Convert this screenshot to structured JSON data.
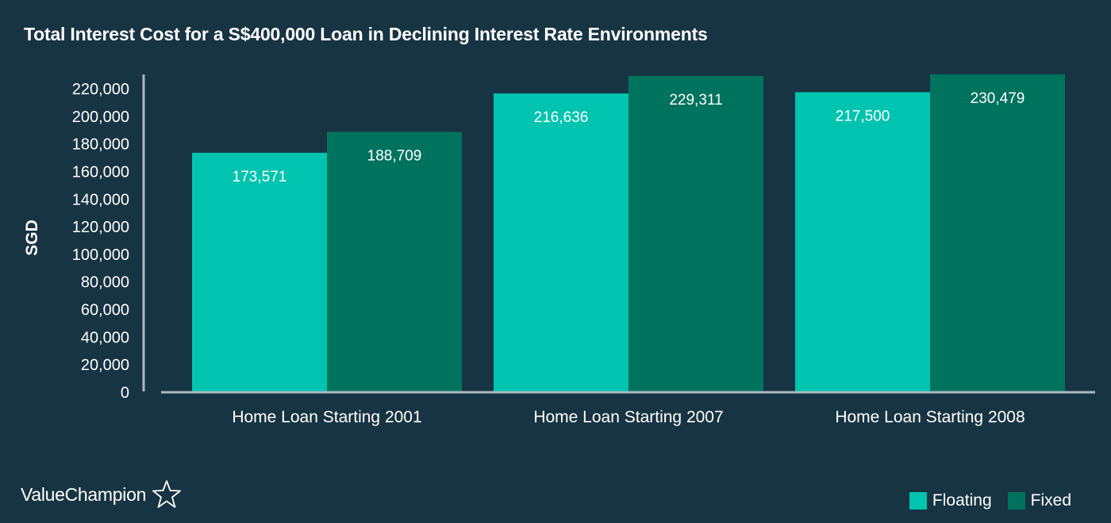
{
  "chart_data": {
    "type": "bar",
    "title": "Total Interest Cost for a S$400,000 Loan in Declining Interest Rate Environments",
    "xlabel": "",
    "ylabel": "SGD",
    "categories": [
      "Home Loan Starting 2001",
      "Home Loan Starting 2007",
      "Home Loan Starting 2008"
    ],
    "series": [
      {
        "name": "Floating",
        "color": "#00c4b0",
        "values": [
          173571,
          216636,
          217500
        ],
        "labels": [
          "173,571",
          "216,636",
          "217,500"
        ]
      },
      {
        "name": "Fixed",
        "color": "#00735f",
        "values": [
          188709,
          229311,
          230479
        ],
        "labels": [
          "188,709",
          "229,311",
          "230,479"
        ]
      }
    ],
    "ylim": [
      0,
      220000
    ],
    "yticks": [
      0,
      20000,
      40000,
      60000,
      80000,
      100000,
      120000,
      140000,
      160000,
      180000,
      200000,
      220000
    ],
    "ytick_labels": [
      "0",
      "20,000",
      "40,000",
      "60,000",
      "80,000",
      "100,000",
      "120,000",
      "140,000",
      "160,000",
      "180,000",
      "200,000",
      "220,000"
    ],
    "grid": false,
    "legend_position": "bottom-right"
  },
  "brand": {
    "name": "ValueChampion",
    "logo_icon": "star-outline-icon"
  },
  "colors": {
    "background": "#173443",
    "axis": "#a9b9c1",
    "text": "#ffffff"
  }
}
